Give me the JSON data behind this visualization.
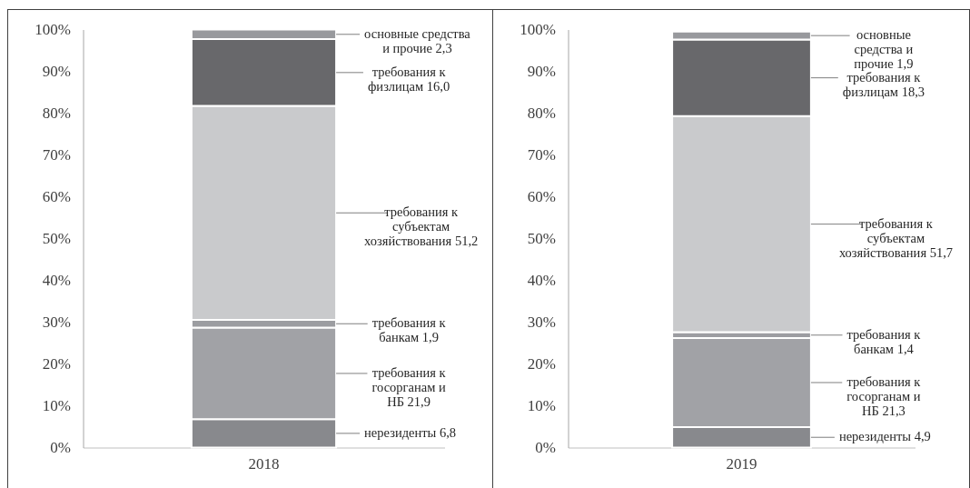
{
  "chart_data": [
    {
      "type": "bar",
      "stacked": true,
      "categories": [
        "2018"
      ],
      "ylim": [
        0,
        100.1
      ],
      "yticks": [
        {
          "value": 0,
          "label": "0%"
        },
        {
          "value": 10,
          "label": "10%"
        },
        {
          "value": 20,
          "label": "20%"
        },
        {
          "value": 30,
          "label": "30%"
        },
        {
          "value": 40,
          "label": "40%"
        },
        {
          "value": 50,
          "label": "50%"
        },
        {
          "value": 60,
          "label": "60%"
        },
        {
          "value": 70,
          "label": "70%"
        },
        {
          "value": 80,
          "label": "80%"
        },
        {
          "value": 90,
          "label": "90%"
        },
        {
          "value": 100,
          "label": "100%"
        }
      ],
      "series": [
        {
          "name": "нерезиденты",
          "color": "#88898d",
          "values": [
            6.8
          ],
          "value_labels": [
            "6,8"
          ]
        },
        {
          "name": "требования к госорганам и НБ",
          "color": "#a1a2a6",
          "values": [
            21.9
          ],
          "value_labels": [
            "21,9"
          ]
        },
        {
          "name": "требования к банкам",
          "color": "#9c9da1",
          "values": [
            1.9
          ],
          "value_labels": [
            "1,9"
          ]
        },
        {
          "name": "требования к субъектам хозяйствования",
          "color": "#c9cacc",
          "values": [
            51.2
          ],
          "value_labels": [
            "51,2"
          ]
        },
        {
          "name": "требования к физлицам",
          "color": "#68686b",
          "values": [
            16
          ],
          "value_labels": [
            "16,0"
          ]
        },
        {
          "name": "основные средства и прочие",
          "color": "#98999d",
          "values": [
            2.3
          ],
          "value_labels": [
            "2,3"
          ]
        }
      ]
    },
    {
      "type": "bar",
      "stacked": true,
      "categories": [
        "2019"
      ],
      "ylim": [
        0,
        100
      ],
      "yticks": [
        {
          "value": 0,
          "label": "0%"
        },
        {
          "value": 10,
          "label": "10%"
        },
        {
          "value": 20,
          "label": "20%"
        },
        {
          "value": 30,
          "label": "30%"
        },
        {
          "value": 40,
          "label": "40%"
        },
        {
          "value": 50,
          "label": "50%"
        },
        {
          "value": 60,
          "label": "60%"
        },
        {
          "value": 70,
          "label": "70%"
        },
        {
          "value": 80,
          "label": "80%"
        },
        {
          "value": 90,
          "label": "90%"
        },
        {
          "value": 100,
          "label": "100%"
        }
      ],
      "series": [
        {
          "name": "нерезиденты",
          "color": "#88898d",
          "values": [
            4.9
          ],
          "value_labels": [
            "4,9"
          ]
        },
        {
          "name": "требования к госорганам и НБ",
          "color": "#a1a2a6",
          "values": [
            21.3
          ],
          "value_labels": [
            "21,3"
          ]
        },
        {
          "name": "требования к банкам",
          "color": "#9c9da1",
          "values": [
            1.4
          ],
          "value_labels": [
            "1,4"
          ]
        },
        {
          "name": "требования к субъектам хозяйствования",
          "color": "#c9cacc",
          "values": [
            51.7
          ],
          "value_labels": [
            "51,7"
          ]
        },
        {
          "name": "требования к физлицам",
          "color": "#68686b",
          "values": [
            18.3
          ],
          "value_labels": [
            "18,3"
          ]
        },
        {
          "name": "основные средства и прочие",
          "color": "#98999d",
          "values": [
            1.9
          ],
          "value_labels": [
            "1,9"
          ]
        }
      ]
    }
  ]
}
